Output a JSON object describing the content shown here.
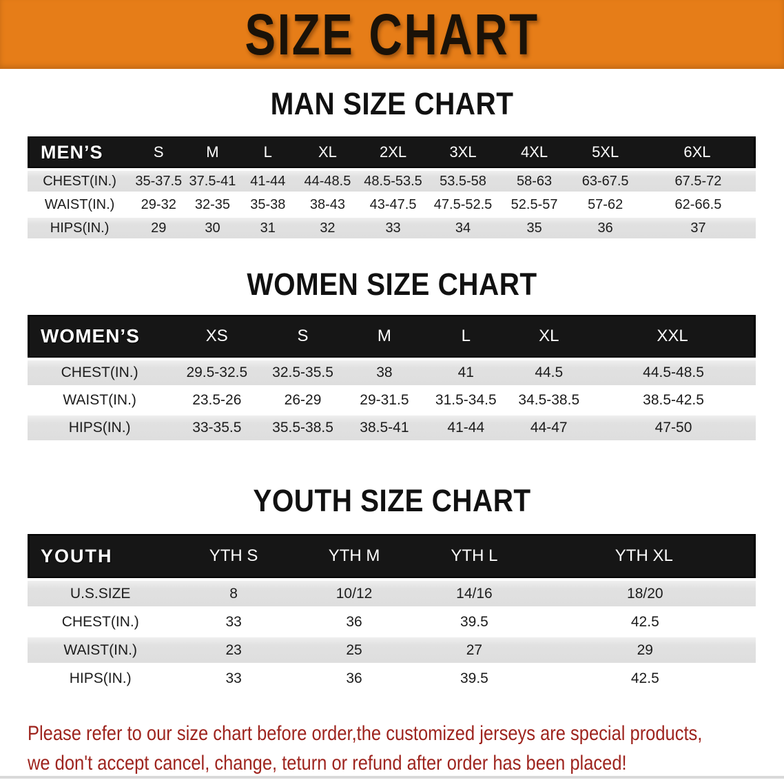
{
  "banner": {
    "title": "SIZE CHART"
  },
  "sections": [
    {
      "id": "men",
      "heading": "MAN SIZE CHART",
      "table": {
        "header": [
          "MEN’S",
          "S",
          "M",
          "L",
          "XL",
          "2XL",
          "3XL",
          "4XL",
          "5XL",
          "6XL"
        ],
        "rows": [
          {
            "label": "CHEST(IN.)",
            "values": [
              "35-37.5",
              "37.5-41",
              "41-44",
              "44-48.5",
              "48.5-53.5",
              "53.5-58",
              "58-63",
              "63-67.5",
              "67.5-72"
            ]
          },
          {
            "label": "WAIST(IN.)",
            "values": [
              "29-32",
              "32-35",
              "35-38",
              "38-43",
              "43-47.5",
              "47.5-52.5",
              "52.5-57",
              "57-62",
              "62-66.5"
            ]
          },
          {
            "label": "HIPS(IN.)",
            "values": [
              "29",
              "30",
              "31",
              "32",
              "33",
              "34",
              "35",
              "36",
              "37"
            ]
          }
        ]
      }
    },
    {
      "id": "women",
      "heading": "WOMEN SIZE CHART",
      "table": {
        "header": [
          "WOMEN’S",
          "XS",
          "S",
          "M",
          "L",
          "XL",
          "XXL"
        ],
        "rows": [
          {
            "label": "CHEST(IN.)",
            "values": [
              "29.5-32.5",
              "32.5-35.5",
              "38",
              "41",
              "44.5",
              "44.5-48.5"
            ]
          },
          {
            "label": "WAIST(IN.)",
            "values": [
              "23.5-26",
              "26-29",
              "29-31.5",
              "31.5-34.5",
              "34.5-38.5",
              "38.5-42.5"
            ]
          },
          {
            "label": "HIPS(IN.)",
            "values": [
              "33-35.5",
              "35.5-38.5",
              "38.5-41",
              "41-44",
              "44-47",
              "47-50"
            ]
          }
        ]
      }
    },
    {
      "id": "youth",
      "heading": "YOUTH SIZE CHART",
      "table": {
        "header": [
          "YOUTH",
          "YTH S",
          "YTH M",
          "YTH L",
          "YTH XL"
        ],
        "rows": [
          {
            "label": "U.S.SIZE",
            "values": [
              "8",
              "10/12",
              "14/16",
              "18/20"
            ]
          },
          {
            "label": "CHEST(IN.)",
            "values": [
              "33",
              "36",
              "39.5",
              "42.5"
            ]
          },
          {
            "label": "WAIST(IN.)",
            "values": [
              "23",
              "25",
              "27",
              "29"
            ]
          },
          {
            "label": "HIPS(IN.)",
            "values": [
              "33",
              "36",
              "39.5",
              "42.5"
            ]
          }
        ]
      }
    }
  ],
  "disclaimer": {
    "line1": "Please refer to our size chart before order,the customized jerseys are special products,",
    "line2": "we don't accept cancel, change, teturn or refund after order has been placed!"
  },
  "colors": {
    "banner_bg": "#e67d18",
    "banner_text": "#1a1208",
    "header_bar": "#161616",
    "header_text": "#ffffff",
    "row_gray": "#dedede",
    "row_white": "#ffffff",
    "heading_text": "#111111",
    "disclaimer_red": "#9e241e"
  }
}
